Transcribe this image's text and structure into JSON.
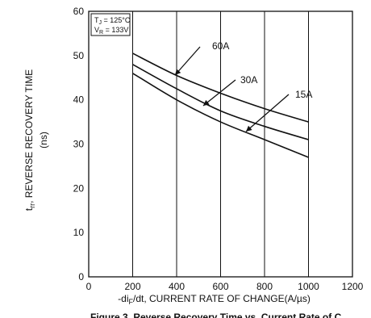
{
  "chart_data": {
    "type": "line",
    "xlabel": "-di",
    "xlabel_sub": "F",
    "xlabel_rest": "/dt, CURRENT RATE OF CHANGE(A/µs)",
    "ylabel": "t",
    "ylabel_sub": "rr",
    "ylabel_rest": ", REVERSE RECOVERY TIME",
    "ylabel_unit": "(ns)",
    "xlim": [
      0,
      1200
    ],
    "ylim": [
      0,
      60
    ],
    "x_ticks": [
      "0",
      "200",
      "400",
      "600",
      "800",
      "1000",
      "1200"
    ],
    "y_ticks": [
      "0",
      "10",
      "20",
      "30",
      "40",
      "50",
      "60"
    ],
    "conditions": [
      {
        "main": "T",
        "sub": "J",
        "rest": " = 125°C"
      },
      {
        "main": "V",
        "sub": "R",
        "rest": " = 133V"
      }
    ],
    "series": [
      {
        "name": "60A",
        "x": [
          200,
          400,
          600,
          800,
          1000
        ],
        "y": [
          50.5,
          45.5,
          41.5,
          38.0,
          35.0
        ]
      },
      {
        "name": "30A",
        "x": [
          200,
          400,
          600,
          800,
          1000
        ],
        "y": [
          48.0,
          42.5,
          37.5,
          34.0,
          31.0
        ]
      },
      {
        "name": "15A",
        "x": [
          200,
          400,
          600,
          800,
          1000
        ],
        "y": [
          46.0,
          40.0,
          35.0,
          31.0,
          27.0
        ]
      }
    ],
    "caption": "Figure 3. Reverse Recovery Time vs. Current Rate of C"
  }
}
